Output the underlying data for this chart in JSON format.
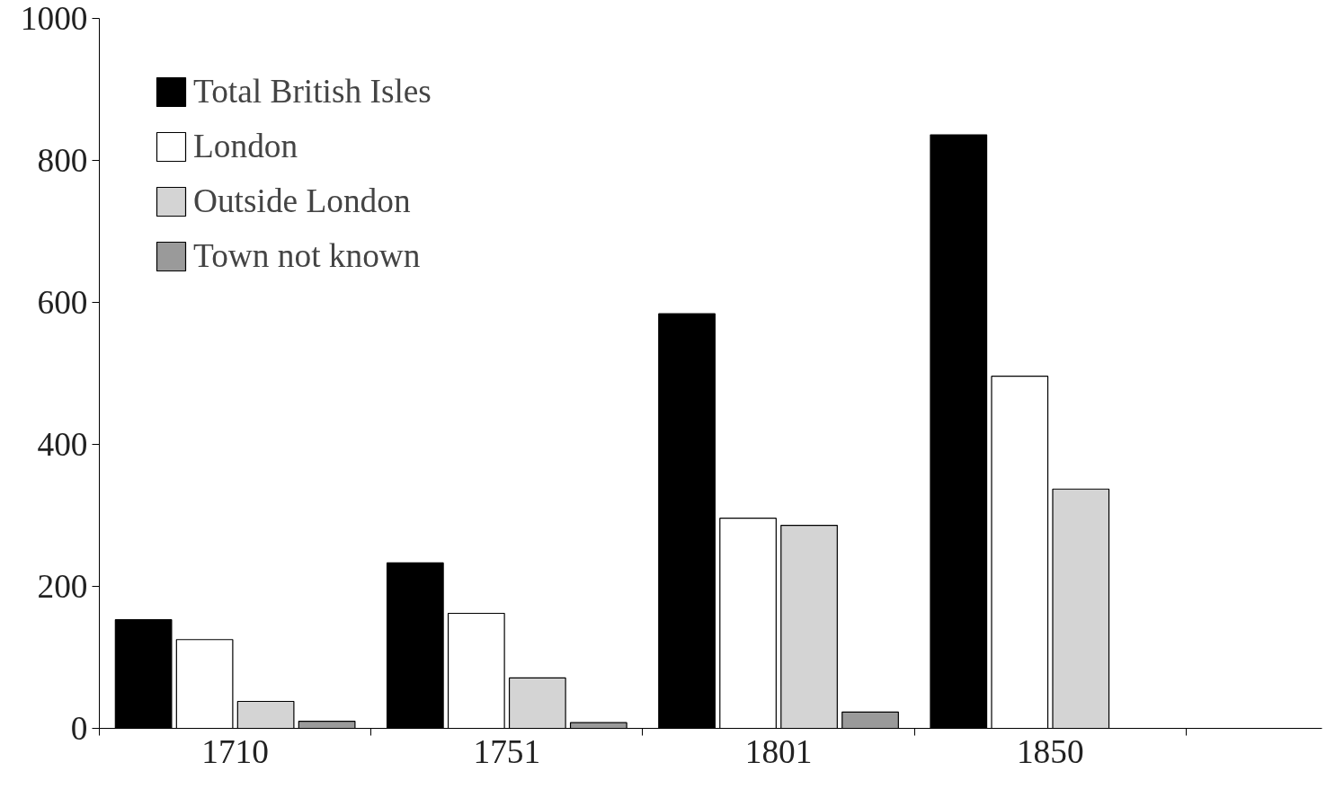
{
  "chart_data": {
    "type": "bar",
    "categories": [
      "1710",
      "1751",
      "1801",
      "1850"
    ],
    "series": [
      {
        "name": "Total British Isles",
        "color": "#000000",
        "values": [
          153,
          233,
          584,
          836
        ]
      },
      {
        "name": "London",
        "color": "#ffffff",
        "values": [
          125,
          162,
          296,
          496
        ]
      },
      {
        "name": "Outside London",
        "color": "#d4d4d4",
        "values": [
          38,
          71,
          286,
          337
        ]
      },
      {
        "name": "Town not known",
        "color": "#9a9a9a",
        "values": [
          10,
          8,
          23,
          null
        ]
      }
    ],
    "ylim": [
      0,
      1000
    ],
    "yticks": [
      0,
      200,
      400,
      600,
      800,
      1000
    ],
    "grid": false,
    "legend": "top left"
  }
}
